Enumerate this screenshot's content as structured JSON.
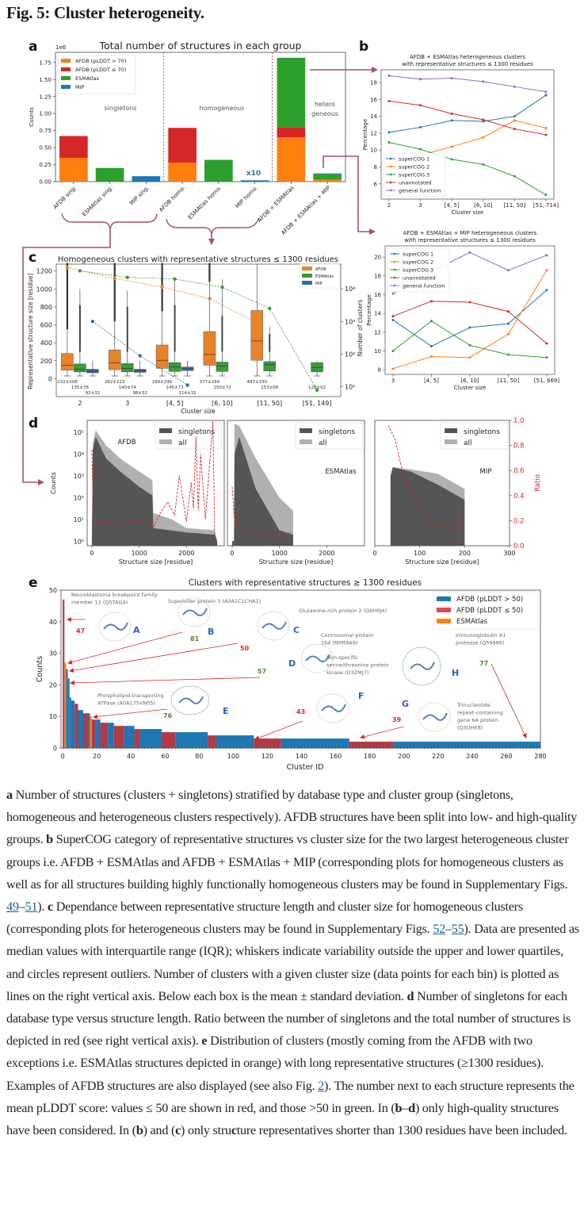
{
  "figure": {
    "title": "Fig. 5: Cluster heterogeneity.",
    "panel_labels": [
      "a",
      "b",
      "c",
      "d",
      "e"
    ]
  },
  "colors": {
    "orange": "#ff7f0e",
    "red": "#d62728",
    "green": "#2ca02c",
    "blue": "#1f77b4",
    "purple": "#9467bd",
    "maroon": "#b03a48",
    "connector": "#a64d79",
    "dark_gray": "#555555",
    "light_gray": "#b0b0b0",
    "ratio_red": "#d62728"
  },
  "chart_data": [
    {
      "id": "a",
      "type": "bar",
      "stacked": true,
      "title": "Total number of structures in each group",
      "ylabel": "Counts",
      "y_scale_label": "1e6",
      "ylim": [
        0,
        1.9
      ],
      "yticks": [
        0.0,
        0.25,
        0.5,
        0.75,
        1.0,
        1.25,
        1.5,
        1.75
      ],
      "ytick_labels": [
        "0.00",
        "0.25",
        "0.50",
        "0.75",
        "1.00",
        "1.25",
        "1.50",
        "1.75"
      ],
      "categories": [
        "AFDB sing.",
        "ESMAtlas sing.",
        "MIP sing.",
        "AFDB homo.",
        "ESMAtlas homo.",
        "MIP homo.",
        "AFDB + ESMAtlas",
        "AFDB + ESMAtlas + MIP"
      ],
      "series": [
        {
          "name": "AFDB (pLDDT > 70)",
          "color": "#ff7f0e",
          "values": [
            0.35,
            0,
            0,
            0.28,
            0,
            0,
            0.65,
            0.03
          ]
        },
        {
          "name": "AFDB (pLDDT ≤ 70)",
          "color": "#d62728",
          "values": [
            0.32,
            0,
            0,
            0.51,
            0,
            0,
            0.15,
            0.0
          ]
        },
        {
          "name": "ESMAtlas",
          "color": "#2ca02c",
          "values": [
            0,
            0.2,
            0,
            0,
            0.32,
            0,
            1.02,
            0.08
          ]
        },
        {
          "name": "MIP",
          "color": "#1f77b4",
          "values": [
            0,
            0,
            0.08,
            0,
            0,
            0.02,
            0,
            0.01
          ]
        }
      ],
      "group_labels": [
        "singletons",
        "homogeneous",
        "hetero\ngeneous"
      ],
      "annotations": [
        "x10"
      ],
      "legend": "top-left"
    },
    {
      "id": "b_top",
      "type": "line",
      "title": "AFDB + ESMAtlas heterogeneous clusters\nwith representative structures ≤ 1300 residues",
      "xlabel": "Cluster size",
      "ylabel": "Percentage",
      "categories": [
        "2",
        "3",
        "[4, 5]",
        "[6, 10]",
        "[11, 50]",
        "[51, 714]"
      ],
      "ylim": [
        4.2,
        19.5
      ],
      "yticks": [
        6,
        8,
        10,
        12,
        14,
        16,
        18
      ],
      "series": [
        {
          "name": "superCOG 1",
          "color": "#1f77b4",
          "values": [
            12.1,
            12.7,
            13.5,
            13.4,
            14.0,
            16.5
          ]
        },
        {
          "name": "superCOG 2",
          "color": "#ff7f0e",
          "values": [
            8.4,
            9.4,
            10.4,
            11.5,
            13.5,
            12.6
          ]
        },
        {
          "name": "superCOG 3",
          "color": "#2ca02c",
          "values": [
            10.9,
            10.1,
            8.9,
            8.3,
            6.9,
            4.7
          ]
        },
        {
          "name": "unannotated",
          "color": "#d62728",
          "values": [
            15.8,
            15.3,
            14.3,
            13.6,
            12.5,
            11.8
          ]
        },
        {
          "name": "general function",
          "color": "#9467bd",
          "values": [
            18.8,
            18.4,
            18.5,
            18.1,
            17.5,
            16.9
          ]
        }
      ],
      "legend": "bottom-left"
    },
    {
      "id": "b_bottom",
      "type": "line",
      "title": "AFDB + ESMAtlas + MIP heterogeneous clusters\nwith representative structures ≤ 1300 residues",
      "xlabel": "Cluster size",
      "ylabel": "Percentage",
      "categories": [
        "3",
        "[4, 5]",
        "[6, 10]",
        "[11, 50]",
        "[51, 669]"
      ],
      "ylim": [
        7.5,
        21.2
      ],
      "yticks": [
        8,
        10,
        12,
        14,
        16,
        18,
        20
      ],
      "series": [
        {
          "name": "superCOG 1",
          "color": "#1f77b4",
          "values": [
            13.3,
            10.5,
            12.5,
            12.9,
            16.5
          ]
        },
        {
          "name": "superCOG 2",
          "color": "#ff7f0e",
          "values": [
            8.1,
            9.4,
            9.3,
            11.8,
            18.6
          ]
        },
        {
          "name": "superCOG 3",
          "color": "#2ca02c",
          "values": [
            10.0,
            13.2,
            10.6,
            9.6,
            9.3
          ]
        },
        {
          "name": "unannotated",
          "color": "#d62728",
          "values": [
            13.7,
            15.3,
            15.2,
            14.2,
            10.8
          ]
        },
        {
          "name": "general function",
          "color": "#9467bd",
          "values": [
            16.1,
            18.5,
            20.5,
            18.6,
            20.2
          ]
        }
      ],
      "legend": "top-left"
    },
    {
      "id": "c",
      "type": "box",
      "title": "Homogeneous clusters with representative structures ≤ 1300 residues",
      "xlabel": "Cluster size",
      "ylabel": "Representative structure size [residue]",
      "ylabel_right": "Number of clusters",
      "categories": [
        "2",
        "3",
        "[4, 5]",
        "[6, 10]",
        "[11, 50]",
        "[51, 149]"
      ],
      "ylim": [
        -200,
        1330
      ],
      "yticks": [
        0,
        200,
        400,
        600,
        800,
        1000,
        1200
      ],
      "y2_ticks": [
        "10¹",
        "10²",
        "10³",
        "10⁴"
      ],
      "series": [
        {
          "name": "AFDB",
          "color": "#e8832a",
          "boxes": [
            [
              95,
              150,
              280
            ],
            [
              100,
              175,
              320
            ],
            [
              115,
              205,
              375
            ],
            [
              150,
              270,
              525
            ],
            [
              205,
              420,
              760
            ],
            null
          ],
          "mean_sd": [
            "232±208",
            "262±223",
            "299±246",
            "377±284",
            "497±330",
            ""
          ],
          "counts_log10": [
            4.65,
            4.32,
            4.05,
            3.7,
            2.95,
            null
          ]
        },
        {
          "name": "ESMAtlas",
          "color": "#3a9a3a",
          "boxes": [
            [
              75,
              105,
              165
            ],
            [
              75,
              115,
              170
            ],
            [
              80,
              130,
              180
            ],
            [
              80,
              140,
              185
            ],
            [
              85,
              155,
              190
            ],
            [
              75,
              125,
              180
            ]
          ],
          "mean_sd": [
            "135±76",
            "140±74",
            "145±73",
            "150±72",
            "153±68",
            "128±62"
          ],
          "counts_log10": [
            4.55,
            4.35,
            4.3,
            4.05,
            3.4,
            0.9
          ]
        },
        {
          "name": "MIP",
          "color": "#2f6fa6",
          "boxes": [
            [
              65,
              85,
              105
            ],
            [
              70,
              90,
              105
            ],
            [
              90,
              110,
              130
            ],
            null,
            null,
            null
          ],
          "mean_sd": [
            "92±32",
            "98±32",
            "114±32",
            "",
            "",
            ""
          ],
          "counts_log10": [
            3.0,
            1.95,
            1.05,
            null,
            null,
            null
          ]
        }
      ],
      "legend": "top-right"
    },
    {
      "id": "d",
      "type": "histogram",
      "xlabel": "Structure size [residue]",
      "ylabel": "Counts",
      "ylabel_right": "Ratio",
      "yscale": "log",
      "yticks": [
        "10⁰",
        "10¹",
        "10²",
        "10³",
        "10⁴",
        "10⁵"
      ],
      "y2_ticks": [
        "0.0",
        "0.2",
        "0.4",
        "0.6",
        "0.8",
        "1.0"
      ],
      "legend_entries": [
        "singletons",
        "all"
      ],
      "subplots": [
        {
          "name": "AFDB",
          "xticks": [
            "0",
            "1000",
            "2000"
          ],
          "xlim": [
            -100,
            2800
          ]
        },
        {
          "name": "ESMAtlas",
          "xticks": [
            "0",
            "1000",
            "2000"
          ],
          "xlim": [
            -100,
            2800
          ]
        },
        {
          "name": "MIP",
          "xticks": [
            "0",
            "100",
            "200",
            "300"
          ],
          "xlim": [
            0,
            300
          ]
        }
      ]
    },
    {
      "id": "e",
      "type": "bar",
      "title": "Clusters with representative structures ≥ 1300 residues",
      "xlabel": "Cluster ID",
      "ylabel": "Counts",
      "ylim": [
        0,
        50
      ],
      "xlim": [
        -1,
        280
      ],
      "yticks": [
        0,
        10,
        20,
        30,
        40,
        50
      ],
      "xticks": [
        0,
        20,
        40,
        60,
        80,
        100,
        120,
        140,
        160,
        180,
        200,
        220,
        240,
        260,
        280
      ],
      "legend": [
        "AFDB (pLDDT > 50)",
        "AFDB (pLDDT ≤ 50)",
        "ESMAtlas"
      ],
      "segments": [
        {
          "x0": 0,
          "x1": 1,
          "count": 47,
          "type": "low"
        },
        {
          "x0": 1,
          "x1": 2,
          "count": 27,
          "type": "esm"
        },
        {
          "x0": 2,
          "x1": 3,
          "count": 25,
          "type": "high"
        },
        {
          "x0": 3,
          "x1": 4,
          "count": 22,
          "type": "high"
        },
        {
          "x0": 4,
          "x1": 5,
          "count": 16,
          "type": "high"
        },
        {
          "x0": 5,
          "x1": 7,
          "count": 15,
          "type": "high"
        },
        {
          "x0": 7,
          "x1": 9,
          "count": 14,
          "type": "low"
        },
        {
          "x0": 9,
          "x1": 12,
          "count": 12,
          "type": "high"
        },
        {
          "x0": 12,
          "x1": 15,
          "count": 11,
          "type": "low"
        },
        {
          "x0": 15,
          "x1": 16,
          "count": 11,
          "type": "high"
        },
        {
          "x0": 16,
          "x1": 17,
          "count": 10,
          "type": "esm"
        },
        {
          "x0": 17,
          "x1": 19,
          "count": 9,
          "type": "low"
        },
        {
          "x0": 19,
          "x1": 22,
          "count": 9,
          "type": "high"
        },
        {
          "x0": 22,
          "x1": 26,
          "count": 8,
          "type": "low"
        },
        {
          "x0": 26,
          "x1": 30,
          "count": 8,
          "type": "high"
        },
        {
          "x0": 30,
          "x1": 36,
          "count": 7,
          "type": "low"
        },
        {
          "x0": 36,
          "x1": 42,
          "count": 7,
          "type": "high"
        },
        {
          "x0": 42,
          "x1": 45,
          "count": 6,
          "type": "low"
        },
        {
          "x0": 45,
          "x1": 58,
          "count": 6,
          "type": "high"
        },
        {
          "x0": 58,
          "x1": 66,
          "count": 5,
          "type": "low"
        },
        {
          "x0": 66,
          "x1": 85,
          "count": 5,
          "type": "high"
        },
        {
          "x0": 85,
          "x1": 90,
          "count": 4,
          "type": "low"
        },
        {
          "x0": 90,
          "x1": 112,
          "count": 4,
          "type": "high"
        },
        {
          "x0": 112,
          "x1": 128,
          "count": 3,
          "type": "low"
        },
        {
          "x0": 128,
          "x1": 168,
          "count": 3,
          "type": "high"
        },
        {
          "x0": 168,
          "x1": 194,
          "count": 2,
          "type": "low"
        },
        {
          "x0": 194,
          "x1": 280,
          "count": 2,
          "type": "high"
        }
      ],
      "examples": [
        {
          "letter": "A",
          "name": "Neuroblastoma breakpoint family\nmember 12 (Q5TAG4)",
          "plddt": "47"
        },
        {
          "letter": "B",
          "name": "Superkiller protein 3 (A0A1C1CHA1)",
          "plddt": "81"
        },
        {
          "letter": "C",
          "name": "Glutamine-rich protein 2 (Q9H0J4)",
          "plddt": "50"
        },
        {
          "letter": "D",
          "name": "Centrosomal protein\n164 (M0R9A9)",
          "plddt": "57"
        },
        {
          "letter": "E",
          "name": "Phospholipid-transporting\nATPase (A0A175VN05)",
          "plddt": "76"
        },
        {
          "letter": "F",
          "name": "Non-specific\nserine/threonine protein\nkinase (D3ZMJ7)",
          "plddt": "43"
        },
        {
          "letter": "G",
          "name": "Trinucleotide\nrepeat-containing\ngene 6A protein\n(Q3UHK8)",
          "plddt": "39"
        },
        {
          "letter": "H",
          "name": "Immunoglobulin A1\nprotease (Q59986)",
          "plddt": "77"
        }
      ]
    }
  ],
  "caption": {
    "segments": [
      {
        "b": "a"
      },
      {
        "t": " Number of structures (clusters + singletons) stratified by database type and cluster group (singletons, homogeneous and heterogeneous clusters respectively). AFDB structures have been split into low- and high-quality groups. "
      },
      {
        "b": "b"
      },
      {
        "t": " SuperCOG category of representative structures vs cluster size for the two largest heterogeneous cluster groups i.e. AFDB + ESMAtlas and AFDB + ESMAtlas + MIP (corresponding plots for homogeneous clusters as well as for all structures building highly functionally homogeneous clusters may be found in Supplementary Figs. "
      },
      {
        "a": "49"
      },
      {
        "t": "–"
      },
      {
        "a": "51"
      },
      {
        "t": "). "
      },
      {
        "b": "c"
      },
      {
        "t": " Dependance between representative structure length and cluster size for homogeneous clusters (corresponding plots for heterogeneous clusters may be found in Supplementary Figs. "
      },
      {
        "a": "52"
      },
      {
        "t": "–"
      },
      {
        "a": "55"
      },
      {
        "t": "). Data are presented as median values with interquartile range (IQR); whiskers indicate variability outside the upper and lower quartiles, and circles represent outliers. Number of clusters with a given cluster size (data points for each bin) is plotted as lines on the right vertical axis. Below each box is the mean ± standard deviation. "
      },
      {
        "b": "d"
      },
      {
        "t": " Number of singletons for each database type versus structure length. Ratio between the number of singletons and the total number of structures is depicted in red (see right vertical axis). "
      },
      {
        "b": "e"
      },
      {
        "t": " Distribution of clusters (mostly coming from the AFDB with two exceptions i.e. ESMAtlas structures depicted in orange) with long representative structures (≥1300 residues). Examples of AFDB structures are also displayed (see also Fig. "
      },
      {
        "a": "2"
      },
      {
        "t": "). The number next to each structure represents the mean pLDDT score: values ≤ 50 are shown in red, and those >50 in green. In ("
      },
      {
        "b": "b"
      },
      {
        "t": "–"
      },
      {
        "b": "d"
      },
      {
        "t": ") only high-quality structures have been considered. In ("
      },
      {
        "b": "b"
      },
      {
        "t": ") and ("
      },
      {
        "b": "c"
      },
      {
        "t": ") only stru"
      },
      {
        "b": "c"
      },
      {
        "t": "ture representatives shorter than 1300 residues have been included."
      }
    ]
  }
}
